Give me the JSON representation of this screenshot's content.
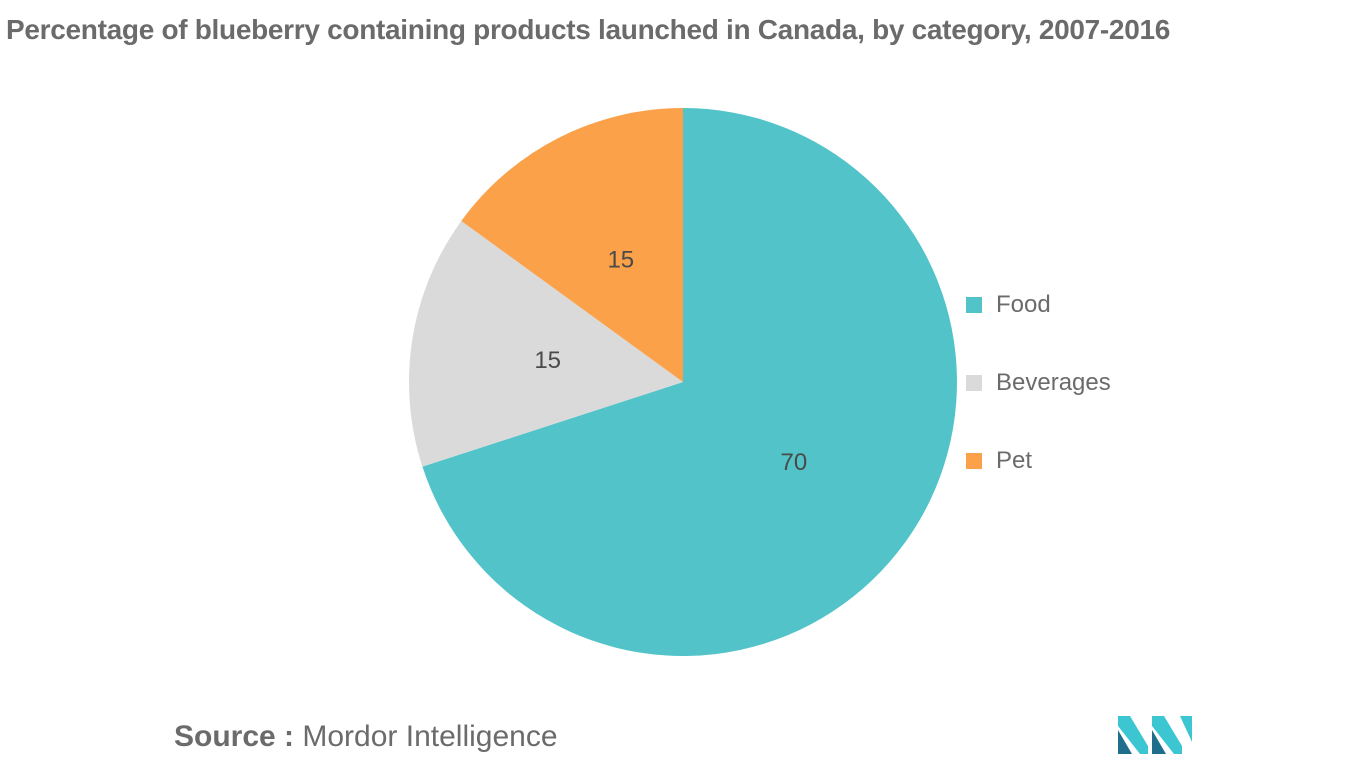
{
  "chart_data": {
    "type": "pie",
    "title": "Percentage of blueberry containing products launched in Canada, by category, 2007-2016",
    "categories": [
      "Food",
      "Beverages",
      "Pet"
    ],
    "values": [
      70,
      15,
      15
    ],
    "data_labels": [
      "70",
      "15",
      "15"
    ],
    "colors": [
      "#52C4C9",
      "#DADADA",
      "#FBA14A"
    ],
    "legend": "right",
    "start_angle": "12-o'clock",
    "direction": "clockwise"
  },
  "source": {
    "prefix": "Source :",
    "text": "Mordor Intelligence"
  },
  "logo": {
    "icon": "mordor-intelligence-logo-icon",
    "colors": [
      "#1F6E8C",
      "#3CC6D1"
    ]
  }
}
